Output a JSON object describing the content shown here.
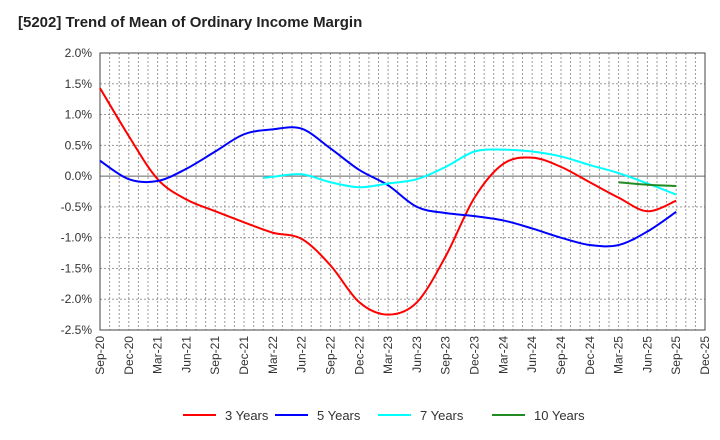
{
  "chart_data": {
    "type": "line",
    "title": "[5202]  Trend of Mean of Ordinary Income Margin",
    "xlabel": "",
    "ylabel": "",
    "ylim": [
      -2.5,
      2.0
    ],
    "yticks": [
      "2.0%",
      "1.5%",
      "1.0%",
      "0.5%",
      "0.0%",
      "-0.5%",
      "-1.0%",
      "-1.5%",
      "-2.0%",
      "-2.5%"
    ],
    "ytick_values": [
      2.0,
      1.5,
      1.0,
      0.5,
      0.0,
      -0.5,
      -1.0,
      -1.5,
      -2.0,
      -2.5
    ],
    "xticks": [
      "Sep-20",
      "Dec-20",
      "Mar-21",
      "Jun-21",
      "Sep-21",
      "Dec-21",
      "Mar-22",
      "Jun-22",
      "Sep-22",
      "Dec-22",
      "Mar-23",
      "Jun-23",
      "Sep-23",
      "Dec-23",
      "Mar-24",
      "Jun-24",
      "Sep-24",
      "Dec-24",
      "Mar-25",
      "Jun-25",
      "Sep-25",
      "Dec-25"
    ],
    "x_unit": "months since Sep-20",
    "grid": true,
    "legend_position": "bottom",
    "series": [
      {
        "name": "3 Years",
        "color": "#ff0000",
        "x": [
          0,
          3,
          6,
          9,
          12,
          15,
          18,
          21,
          24,
          27,
          30,
          33,
          36,
          39,
          42,
          45,
          48,
          51,
          54,
          57,
          60
        ],
        "values": [
          1.43,
          0.65,
          -0.05,
          -0.38,
          -0.57,
          -0.75,
          -0.92,
          -1.02,
          -1.45,
          -2.05,
          -2.25,
          -2.05,
          -1.3,
          -0.35,
          0.2,
          0.3,
          0.15,
          -0.1,
          -0.35,
          -0.57,
          -0.4
        ]
      },
      {
        "name": "5 Years",
        "color": "#0000ff",
        "x": [
          0,
          3,
          6,
          9,
          12,
          15,
          18,
          21,
          24,
          27,
          30,
          33,
          36,
          39,
          42,
          45,
          48,
          51,
          54,
          57,
          60
        ],
        "values": [
          0.25,
          -0.05,
          -0.08,
          0.12,
          0.4,
          0.68,
          0.76,
          0.77,
          0.45,
          0.1,
          -0.15,
          -0.5,
          -0.6,
          -0.65,
          -0.72,
          -0.85,
          -1.0,
          -1.12,
          -1.12,
          -0.9,
          -0.58
        ]
      },
      {
        "name": "7 Years",
        "color": "#00ffff",
        "x": [
          17,
          18,
          21,
          24,
          27,
          30,
          33,
          36,
          39,
          42,
          45,
          48,
          51,
          54,
          57,
          60
        ],
        "values": [
          -0.03,
          -0.01,
          0.03,
          -0.1,
          -0.18,
          -0.12,
          -0.05,
          0.15,
          0.4,
          0.43,
          0.4,
          0.32,
          0.18,
          0.05,
          -0.12,
          -0.3
        ]
      },
      {
        "name": "10 Years",
        "color": "#228b22",
        "x": [
          54,
          57,
          60
        ],
        "values": [
          -0.1,
          -0.14,
          -0.16
        ]
      }
    ]
  }
}
